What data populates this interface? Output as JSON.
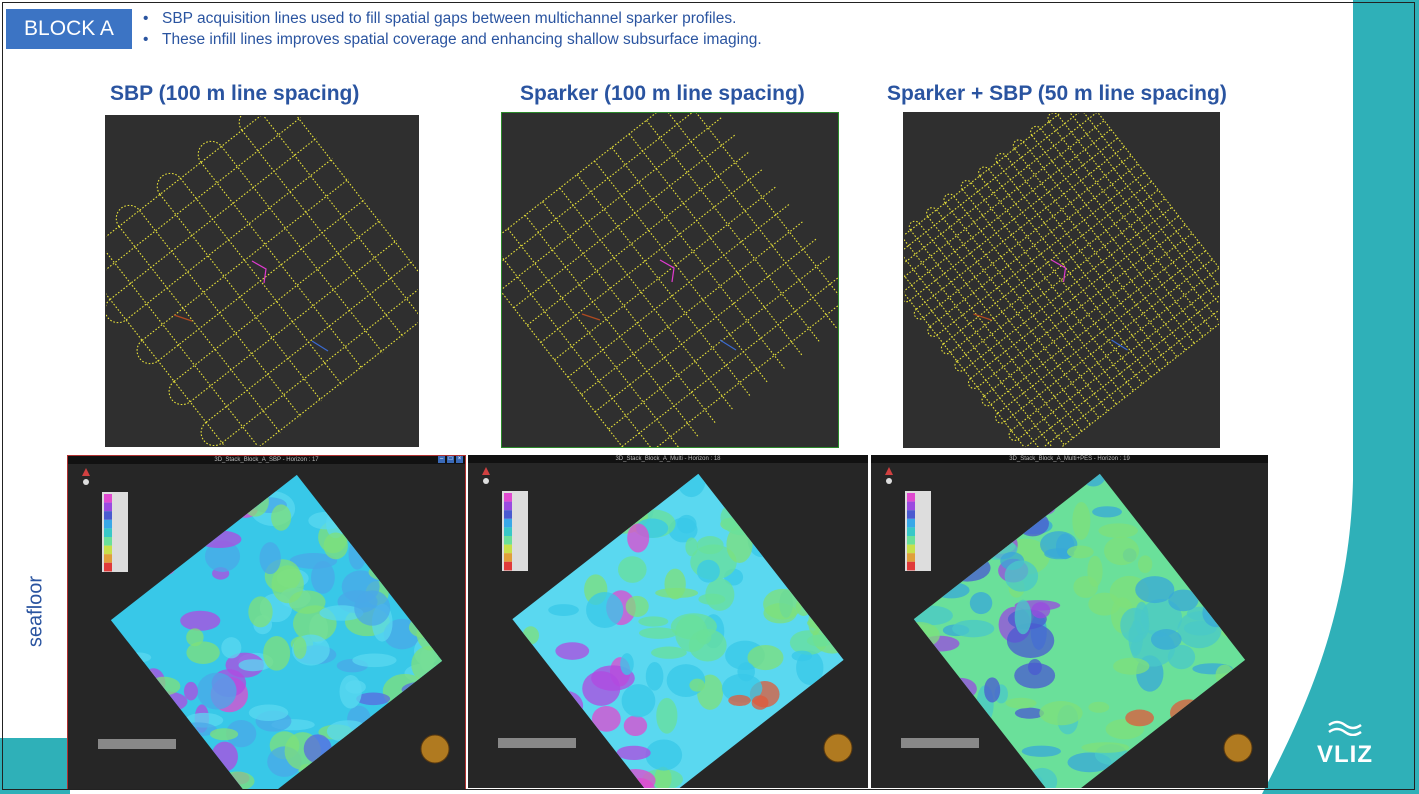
{
  "slide": {
    "block_label": "BLOCK A",
    "bullets": [
      "SBP acquisition lines used to fill spatial gaps between multichannel sparker profiles.",
      "These infill lines improves spatial coverage and enhancing shallow subsurface imaging."
    ],
    "maps": [
      {
        "title": "SBP (100 m line spacing)"
      },
      {
        "title": "Sparker (100 m line spacing)"
      },
      {
        "title": "Sparker + SBP (50 m line spacing)"
      }
    ],
    "side_label": "seafloor",
    "screenshots": [
      {
        "window_title": "3D_Stack_Block_A_SBP - Horizon : 17"
      },
      {
        "window_title": "3D_Stack_Block_A_Multi - Horizon : 18"
      },
      {
        "window_title": "3D_Stack_Block_A_Multi+PES - Horizon : 19"
      }
    ],
    "logo_text": "VLIZ"
  },
  "colors": {
    "teal": "#2fb0b8",
    "title_blue": "#2a54a0",
    "label_bg": "#3c74c4",
    "track_yellow": "#e8e23a",
    "panel_dark": "#2f2f2f"
  }
}
